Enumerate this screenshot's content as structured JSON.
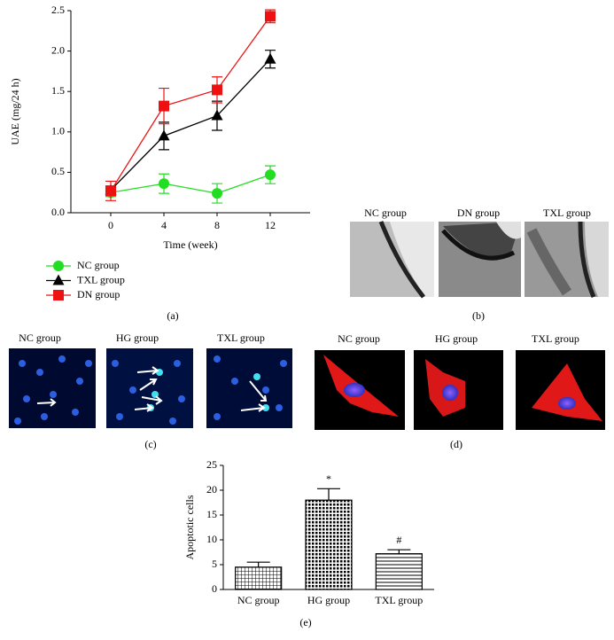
{
  "chart_data": [
    {
      "type": "line",
      "panel_label": "(a)",
      "xlabel": "Time (week)",
      "ylabel": "UAE (mg/24 h)",
      "x": [
        0,
        4,
        8,
        12
      ],
      "xlim": [
        -3,
        15
      ],
      "xticks": [
        0,
        4,
        8,
        12
      ],
      "ylim": [
        0,
        2.5
      ],
      "yticks": [
        {
          "value": 0,
          "label": "0.0"
        },
        {
          "value": 0.5,
          "label": "0.5"
        },
        {
          "value": 1,
          "label": "1.0"
        },
        {
          "value": 1.5,
          "label": "1.5"
        },
        {
          "value": 2,
          "label": "2.0"
        },
        {
          "value": 2.5,
          "label": "2.5"
        }
      ],
      "series": [
        {
          "name": "NC group",
          "color": "#22dd22",
          "marker": "circle",
          "values": [
            0.25,
            0.36,
            0.24,
            0.47
          ],
          "errors": [
            0.05,
            0.12,
            0.12,
            0.11
          ]
        },
        {
          "name": "TXL group",
          "color": "#000000",
          "marker": "triangle",
          "values": [
            0.28,
            0.95,
            1.2,
            1.9
          ],
          "errors": [
            0.05,
            0.17,
            0.18,
            0.11
          ]
        },
        {
          "name": "DN group",
          "color": "#ee1111",
          "marker": "square",
          "values": [
            0.27,
            1.32,
            1.52,
            2.43
          ],
          "errors": [
            0.12,
            0.22,
            0.16,
            0.08
          ]
        }
      ]
    },
    {
      "type": "bar",
      "panel_label": "(e)",
      "ylabel": "Apoptotic cells",
      "categories": [
        "NC group",
        "HG group",
        "TXL group"
      ],
      "values": [
        4.5,
        18,
        7.2
      ],
      "errors": [
        1,
        2.3,
        0.8
      ],
      "annotations": [
        "",
        "*",
        "#"
      ],
      "patterns": [
        "fine-grid",
        "checker",
        "horizontal-lines"
      ],
      "color": "#000000",
      "ylim": [
        0,
        25
      ],
      "yticks": [
        0,
        5,
        10,
        15,
        20,
        25
      ]
    }
  ],
  "panels": [
    {
      "label": "(b)",
      "groups": [
        "NC group",
        "DN group",
        "TXL group"
      ]
    },
    {
      "label": "(c)",
      "groups": [
        "NC group",
        "HG group",
        "TXL group"
      ]
    },
    {
      "label": "(d)",
      "groups": [
        "NC group",
        "HG group",
        "TXL group"
      ]
    }
  ]
}
